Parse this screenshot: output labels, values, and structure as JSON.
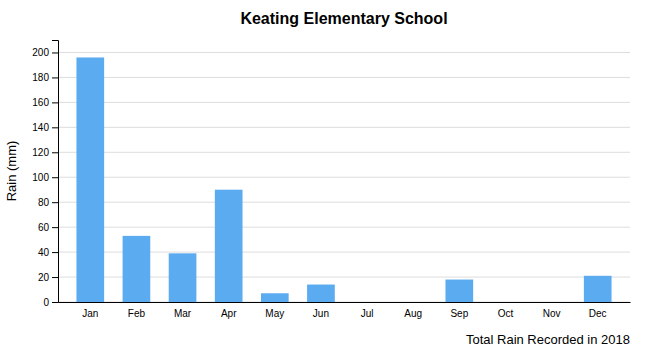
{
  "chart_data": {
    "type": "bar",
    "title": "Keating Elementary School",
    "xlabel": "Total Rain Recorded in 2018",
    "ylabel": "Rain (mm)",
    "categories": [
      "Jan",
      "Feb",
      "Mar",
      "Apr",
      "May",
      "Jun",
      "Jul",
      "Aug",
      "Sep",
      "Oct",
      "Nov",
      "Dec"
    ],
    "values": [
      196,
      53,
      39,
      90,
      7,
      14,
      0,
      0,
      18,
      0,
      0,
      21
    ],
    "color": "#5aabf0",
    "ylim": [
      0,
      210
    ],
    "yticks": [
      0,
      20,
      40,
      60,
      80,
      100,
      120,
      140,
      160,
      180,
      200
    ],
    "grid": true
  }
}
